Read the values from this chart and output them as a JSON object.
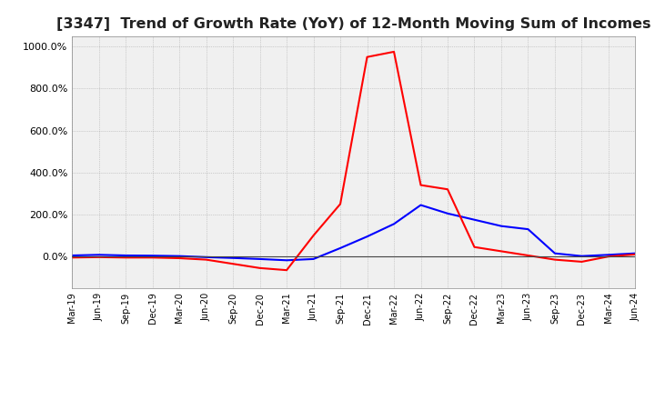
{
  "title": "[3347]  Trend of Growth Rate (YoY) of 12-Month Moving Sum of Incomes",
  "title_fontsize": 11.5,
  "ylim": [
    -150,
    1050
  ],
  "yticks": [
    0,
    200,
    400,
    600,
    800,
    1000
  ],
  "background_color": "#ffffff",
  "plot_bg_color": "#f0f0f0",
  "grid_color": "#aaaaaa",
  "x_labels": [
    "Mar-19",
    "Jun-19",
    "Sep-19",
    "Dec-19",
    "Mar-20",
    "Jun-20",
    "Sep-20",
    "Dec-20",
    "Mar-21",
    "Jun-21",
    "Sep-21",
    "Dec-21",
    "Mar-22",
    "Jun-22",
    "Sep-22",
    "Dec-22",
    "Mar-23",
    "Jun-23",
    "Sep-23",
    "Dec-23",
    "Mar-24",
    "Jun-24"
  ],
  "ordinary_income": [
    5,
    8,
    5,
    4,
    2,
    -3,
    -7,
    -12,
    -18,
    -12,
    40,
    95,
    155,
    245,
    205,
    175,
    145,
    130,
    15,
    2,
    8,
    15
  ],
  "net_income": [
    -5,
    -3,
    -5,
    -5,
    -8,
    -15,
    -35,
    -55,
    -65,
    100,
    250,
    950,
    975,
    340,
    320,
    45,
    25,
    5,
    -15,
    -25,
    0,
    10
  ],
  "ordinary_color": "#0000ff",
  "net_color": "#ff0000",
  "line_width": 1.5
}
